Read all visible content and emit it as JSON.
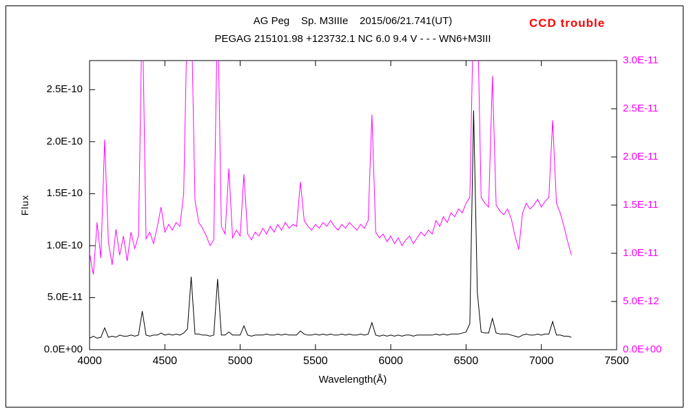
{
  "chart_data": {
    "type": "line",
    "title": "AG Peg    Sp. M3IIIe    2015/06/21.741(UT)",
    "subtitle": "PEGAG 215101.98 +123732.1 NC 6.0 9.4 V - - - WN6+M3III",
    "annotation": "CCD trouble",
    "annotation_color": "#ff0000",
    "xlabel": "Wavelength(Å)",
    "ylabel_left": "Flux",
    "legend": "none",
    "grid": false,
    "x_axis": {
      "min": 4000,
      "max": 7500,
      "ticks": [
        4000,
        4500,
        5000,
        5500,
        6000,
        6500,
        7000,
        7500
      ],
      "tick_labels": [
        "4000",
        "4500",
        "5000",
        "5500",
        "6000",
        "6500",
        "7000",
        "7500"
      ]
    },
    "y_axis_left": {
      "min": 0,
      "max": 2.78e-10,
      "color": "#000000",
      "ticks": [
        0,
        5e-11,
        1e-10,
        1.5e-10,
        2e-10,
        2.5e-10
      ],
      "tick_labels": [
        "0.0E+00",
        "5.0E-11",
        "1.0E-10",
        "1.5E-10",
        "2.0E-10",
        "2.5E-10"
      ]
    },
    "y_axis_right": {
      "min": 0,
      "max": 3e-11,
      "color": "#ff00ff",
      "ticks": [
        0,
        5e-12,
        1e-11,
        1.5e-11,
        2e-11,
        2.5e-11,
        3e-11
      ],
      "tick_labels": [
        "0.0E+00",
        "5.0E-12",
        "1.0E-11",
        "1.5E-11",
        "2.0E-11",
        "2.5E-11",
        "3.0E-11"
      ]
    },
    "series": [
      {
        "name": "magenta-spectrum-WN6+M3III",
        "axis": "right",
        "color": "#ff00ff",
        "x_start": 4000,
        "x_step": 25,
        "value_scale": 1e-11,
        "values": [
          1.0,
          0.78,
          1.32,
          0.95,
          2.18,
          1.12,
          0.88,
          1.25,
          0.98,
          1.18,
          0.92,
          1.22,
          1.05,
          1.18,
          3.6,
          1.15,
          1.22,
          1.1,
          1.28,
          1.48,
          1.22,
          1.3,
          1.24,
          1.32,
          1.28,
          1.62,
          3.6,
          3.6,
          1.55,
          1.32,
          1.26,
          1.18,
          1.08,
          1.14,
          3.6,
          1.28,
          1.2,
          1.88,
          1.16,
          1.24,
          1.18,
          1.82,
          1.2,
          1.14,
          1.22,
          1.18,
          1.26,
          1.2,
          1.28,
          1.22,
          1.3,
          1.24,
          1.32,
          1.26,
          1.3,
          1.28,
          1.74,
          1.34,
          1.28,
          1.24,
          1.3,
          1.26,
          1.32,
          1.28,
          1.34,
          1.28,
          1.24,
          1.3,
          1.26,
          1.32,
          1.28,
          1.24,
          1.3,
          1.26,
          1.34,
          2.44,
          1.22,
          1.16,
          1.2,
          1.12,
          1.18,
          1.1,
          1.16,
          1.08,
          1.14,
          1.18,
          1.1,
          1.16,
          1.22,
          1.18,
          1.24,
          1.2,
          1.34,
          1.28,
          1.38,
          1.32,
          1.42,
          1.38,
          1.46,
          1.42,
          1.52,
          1.58,
          3.6,
          3.6,
          1.58,
          1.52,
          1.48,
          2.84,
          1.5,
          1.44,
          1.4,
          1.46,
          1.36,
          1.18,
          1.04,
          1.42,
          1.52,
          1.46,
          1.5,
          1.56,
          1.48,
          1.54,
          1.58,
          2.38,
          1.52,
          1.42,
          1.28,
          1.12,
          0.98
        ]
      },
      {
        "name": "black-spectrum",
        "axis": "left",
        "color": "#000000",
        "x_start": 4000,
        "x_step": 25,
        "value_scale": 1e-10,
        "values": [
          0.11,
          0.13,
          0.11,
          0.12,
          0.21,
          0.12,
          0.13,
          0.12,
          0.14,
          0.13,
          0.13,
          0.14,
          0.13,
          0.14,
          0.37,
          0.14,
          0.13,
          0.14,
          0.14,
          0.16,
          0.14,
          0.15,
          0.14,
          0.15,
          0.14,
          0.16,
          0.2,
          0.7,
          0.15,
          0.15,
          0.14,
          0.14,
          0.13,
          0.14,
          0.68,
          0.14,
          0.14,
          0.17,
          0.14,
          0.14,
          0.14,
          0.23,
          0.14,
          0.13,
          0.14,
          0.14,
          0.14,
          0.15,
          0.14,
          0.14,
          0.15,
          0.14,
          0.15,
          0.14,
          0.14,
          0.14,
          0.18,
          0.15,
          0.14,
          0.14,
          0.15,
          0.14,
          0.15,
          0.14,
          0.15,
          0.14,
          0.14,
          0.15,
          0.14,
          0.15,
          0.14,
          0.14,
          0.15,
          0.14,
          0.15,
          0.26,
          0.14,
          0.13,
          0.14,
          0.13,
          0.14,
          0.13,
          0.14,
          0.13,
          0.14,
          0.14,
          0.13,
          0.14,
          0.14,
          0.14,
          0.14,
          0.14,
          0.15,
          0.14,
          0.15,
          0.14,
          0.15,
          0.15,
          0.15,
          0.16,
          0.17,
          0.25,
          2.3,
          0.55,
          0.17,
          0.16,
          0.16,
          0.3,
          0.16,
          0.15,
          0.15,
          0.15,
          0.14,
          0.13,
          0.12,
          0.14,
          0.15,
          0.14,
          0.14,
          0.15,
          0.14,
          0.15,
          0.15,
          0.27,
          0.14,
          0.14,
          0.13,
          0.13,
          0.12
        ]
      }
    ]
  }
}
